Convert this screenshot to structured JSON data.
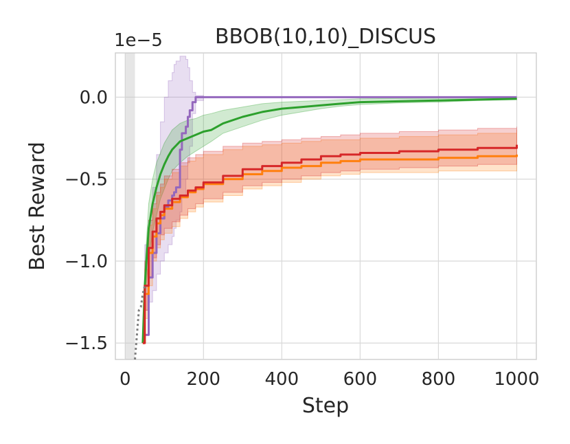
{
  "chart_data": {
    "type": "line",
    "title": "BBOB(10,10)_DISCUS",
    "xlabel": "Step",
    "ylabel": "Best Reward",
    "y_offset_label": "1e−5",
    "xlim": [
      -25,
      1050
    ],
    "ylim": [
      -1.6,
      0.27
    ],
    "x_ticks": [
      0,
      200,
      400,
      600,
      800,
      1000
    ],
    "x_tick_labels": [
      "0",
      "200",
      "400",
      "600",
      "800",
      "1000"
    ],
    "y_ticks": [
      0.0,
      -0.5,
      -1.0,
      -1.5
    ],
    "y_tick_labels": [
      "0.0",
      "−0.5",
      "−1.0",
      "−1.5"
    ],
    "grid": true,
    "shaded_region": {
      "x": [
        0,
        25
      ],
      "color": "#c8c8c8"
    },
    "series": [
      {
        "color": "#9467bd",
        "step": true,
        "x": [
          50,
          60,
          70,
          80,
          90,
          100,
          110,
          120,
          125,
          130,
          140,
          145,
          155,
          160,
          165,
          172,
          180,
          200,
          1000
        ],
        "y": [
          -1.45,
          -1.1,
          -0.95,
          -0.83,
          -0.74,
          -0.67,
          -0.63,
          -0.6,
          -0.58,
          -0.55,
          -0.32,
          -0.22,
          -0.18,
          -0.12,
          -0.08,
          -0.03,
          0.0,
          0.0,
          0.0
        ],
        "lower": [
          -1.3,
          -1.25,
          -1.18,
          -1.08,
          -1.0,
          -0.95,
          -0.9,
          -0.85,
          -0.8,
          -0.75,
          -0.7,
          -0.6,
          -0.5,
          -0.4,
          -0.3,
          -0.1,
          -0.02,
          0.0,
          0.0
        ],
        "upper": [
          -0.9,
          -0.75,
          -0.55,
          -0.35,
          -0.15,
          0.0,
          0.1,
          0.15,
          0.2,
          0.22,
          0.25,
          0.25,
          0.23,
          0.18,
          0.1,
          0.03,
          0.01,
          0.0,
          0.0
        ]
      },
      {
        "color": "#2ca02c",
        "step": false,
        "x": [
          45,
          50,
          60,
          70,
          80,
          90,
          100,
          110,
          120,
          140,
          160,
          180,
          200,
          220,
          250,
          300,
          350,
          400,
          450,
          500,
          550,
          600,
          700,
          800,
          900,
          1000
        ],
        "y": [
          -1.5,
          -1.15,
          -0.8,
          -0.65,
          -0.55,
          -0.47,
          -0.41,
          -0.36,
          -0.32,
          -0.27,
          -0.25,
          -0.23,
          -0.21,
          -0.2,
          -0.16,
          -0.12,
          -0.09,
          -0.07,
          -0.06,
          -0.05,
          -0.04,
          -0.03,
          -0.025,
          -0.02,
          -0.015,
          -0.01
        ],
        "lower": [
          -1.5,
          -1.25,
          -0.98,
          -0.82,
          -0.72,
          -0.62,
          -0.56,
          -0.5,
          -0.45,
          -0.4,
          -0.36,
          -0.33,
          -0.3,
          -0.27,
          -0.22,
          -0.18,
          -0.14,
          -0.11,
          -0.09,
          -0.07,
          -0.055,
          -0.045,
          -0.035,
          -0.03,
          -0.02,
          -0.015
        ],
        "upper": [
          -1.5,
          -1.05,
          -0.65,
          -0.5,
          -0.4,
          -0.34,
          -0.28,
          -0.24,
          -0.2,
          -0.16,
          -0.14,
          -0.13,
          -0.11,
          -0.1,
          -0.08,
          -0.06,
          -0.04,
          -0.03,
          -0.025,
          -0.02,
          -0.015,
          -0.01,
          -0.008,
          -0.006,
          -0.005,
          -0.005
        ]
      },
      {
        "color": "#ff7f0e",
        "step": true,
        "x": [
          45,
          50,
          60,
          70,
          80,
          90,
          100,
          120,
          140,
          160,
          180,
          200,
          250,
          300,
          350,
          400,
          450,
          500,
          550,
          600,
          700,
          800,
          900,
          1000
        ],
        "y": [
          -1.5,
          -1.2,
          -0.95,
          -0.85,
          -0.77,
          -0.72,
          -0.68,
          -0.64,
          -0.61,
          -0.58,
          -0.56,
          -0.53,
          -0.5,
          -0.47,
          -0.45,
          -0.43,
          -0.42,
          -0.4,
          -0.39,
          -0.38,
          -0.38,
          -0.37,
          -0.36,
          -0.35
        ],
        "lower": [
          -1.5,
          -1.35,
          -1.15,
          -1.0,
          -0.92,
          -0.87,
          -0.83,
          -0.79,
          -0.74,
          -0.7,
          -0.67,
          -0.64,
          -0.6,
          -0.56,
          -0.54,
          -0.52,
          -0.5,
          -0.48,
          -0.47,
          -0.46,
          -0.46,
          -0.45,
          -0.45,
          -0.45
        ],
        "upper": [
          -1.5,
          -1.05,
          -0.78,
          -0.68,
          -0.6,
          -0.55,
          -0.5,
          -0.46,
          -0.42,
          -0.39,
          -0.37,
          -0.35,
          -0.32,
          -0.3,
          -0.29,
          -0.28,
          -0.27,
          -0.26,
          -0.26,
          -0.25,
          -0.24,
          -0.23,
          -0.22,
          -0.2
        ]
      },
      {
        "color": "#d62728",
        "step": true,
        "x": [
          45,
          50,
          60,
          70,
          80,
          90,
          100,
          120,
          140,
          160,
          180,
          200,
          250,
          300,
          350,
          400,
          450,
          500,
          550,
          600,
          700,
          800,
          900,
          1000
        ],
        "y": [
          -1.5,
          -1.15,
          -0.92,
          -0.82,
          -0.74,
          -0.7,
          -0.66,
          -0.62,
          -0.6,
          -0.57,
          -0.55,
          -0.52,
          -0.48,
          -0.44,
          -0.42,
          -0.4,
          -0.38,
          -0.36,
          -0.35,
          -0.34,
          -0.33,
          -0.32,
          -0.31,
          -0.29
        ],
        "lower": [
          -1.5,
          -1.3,
          -1.1,
          -0.98,
          -0.9,
          -0.84,
          -0.8,
          -0.76,
          -0.72,
          -0.68,
          -0.65,
          -0.62,
          -0.58,
          -0.54,
          -0.52,
          -0.5,
          -0.48,
          -0.46,
          -0.45,
          -0.44,
          -0.43,
          -0.42,
          -0.41,
          -0.4
        ],
        "upper": [
          -1.5,
          -1.0,
          -0.75,
          -0.65,
          -0.58,
          -0.53,
          -0.48,
          -0.44,
          -0.4,
          -0.37,
          -0.35,
          -0.33,
          -0.3,
          -0.28,
          -0.27,
          -0.26,
          -0.25,
          -0.24,
          -0.23,
          -0.22,
          -0.21,
          -0.2,
          -0.19,
          -0.18
        ]
      },
      {
        "color": "#7f7f7f",
        "dashed": true,
        "step": false,
        "x": [
          25,
          30,
          35,
          40,
          45,
          50
        ],
        "y": [
          -1.6,
          -1.45,
          -1.3,
          -1.28,
          -1.2,
          -1.15
        ]
      }
    ]
  }
}
